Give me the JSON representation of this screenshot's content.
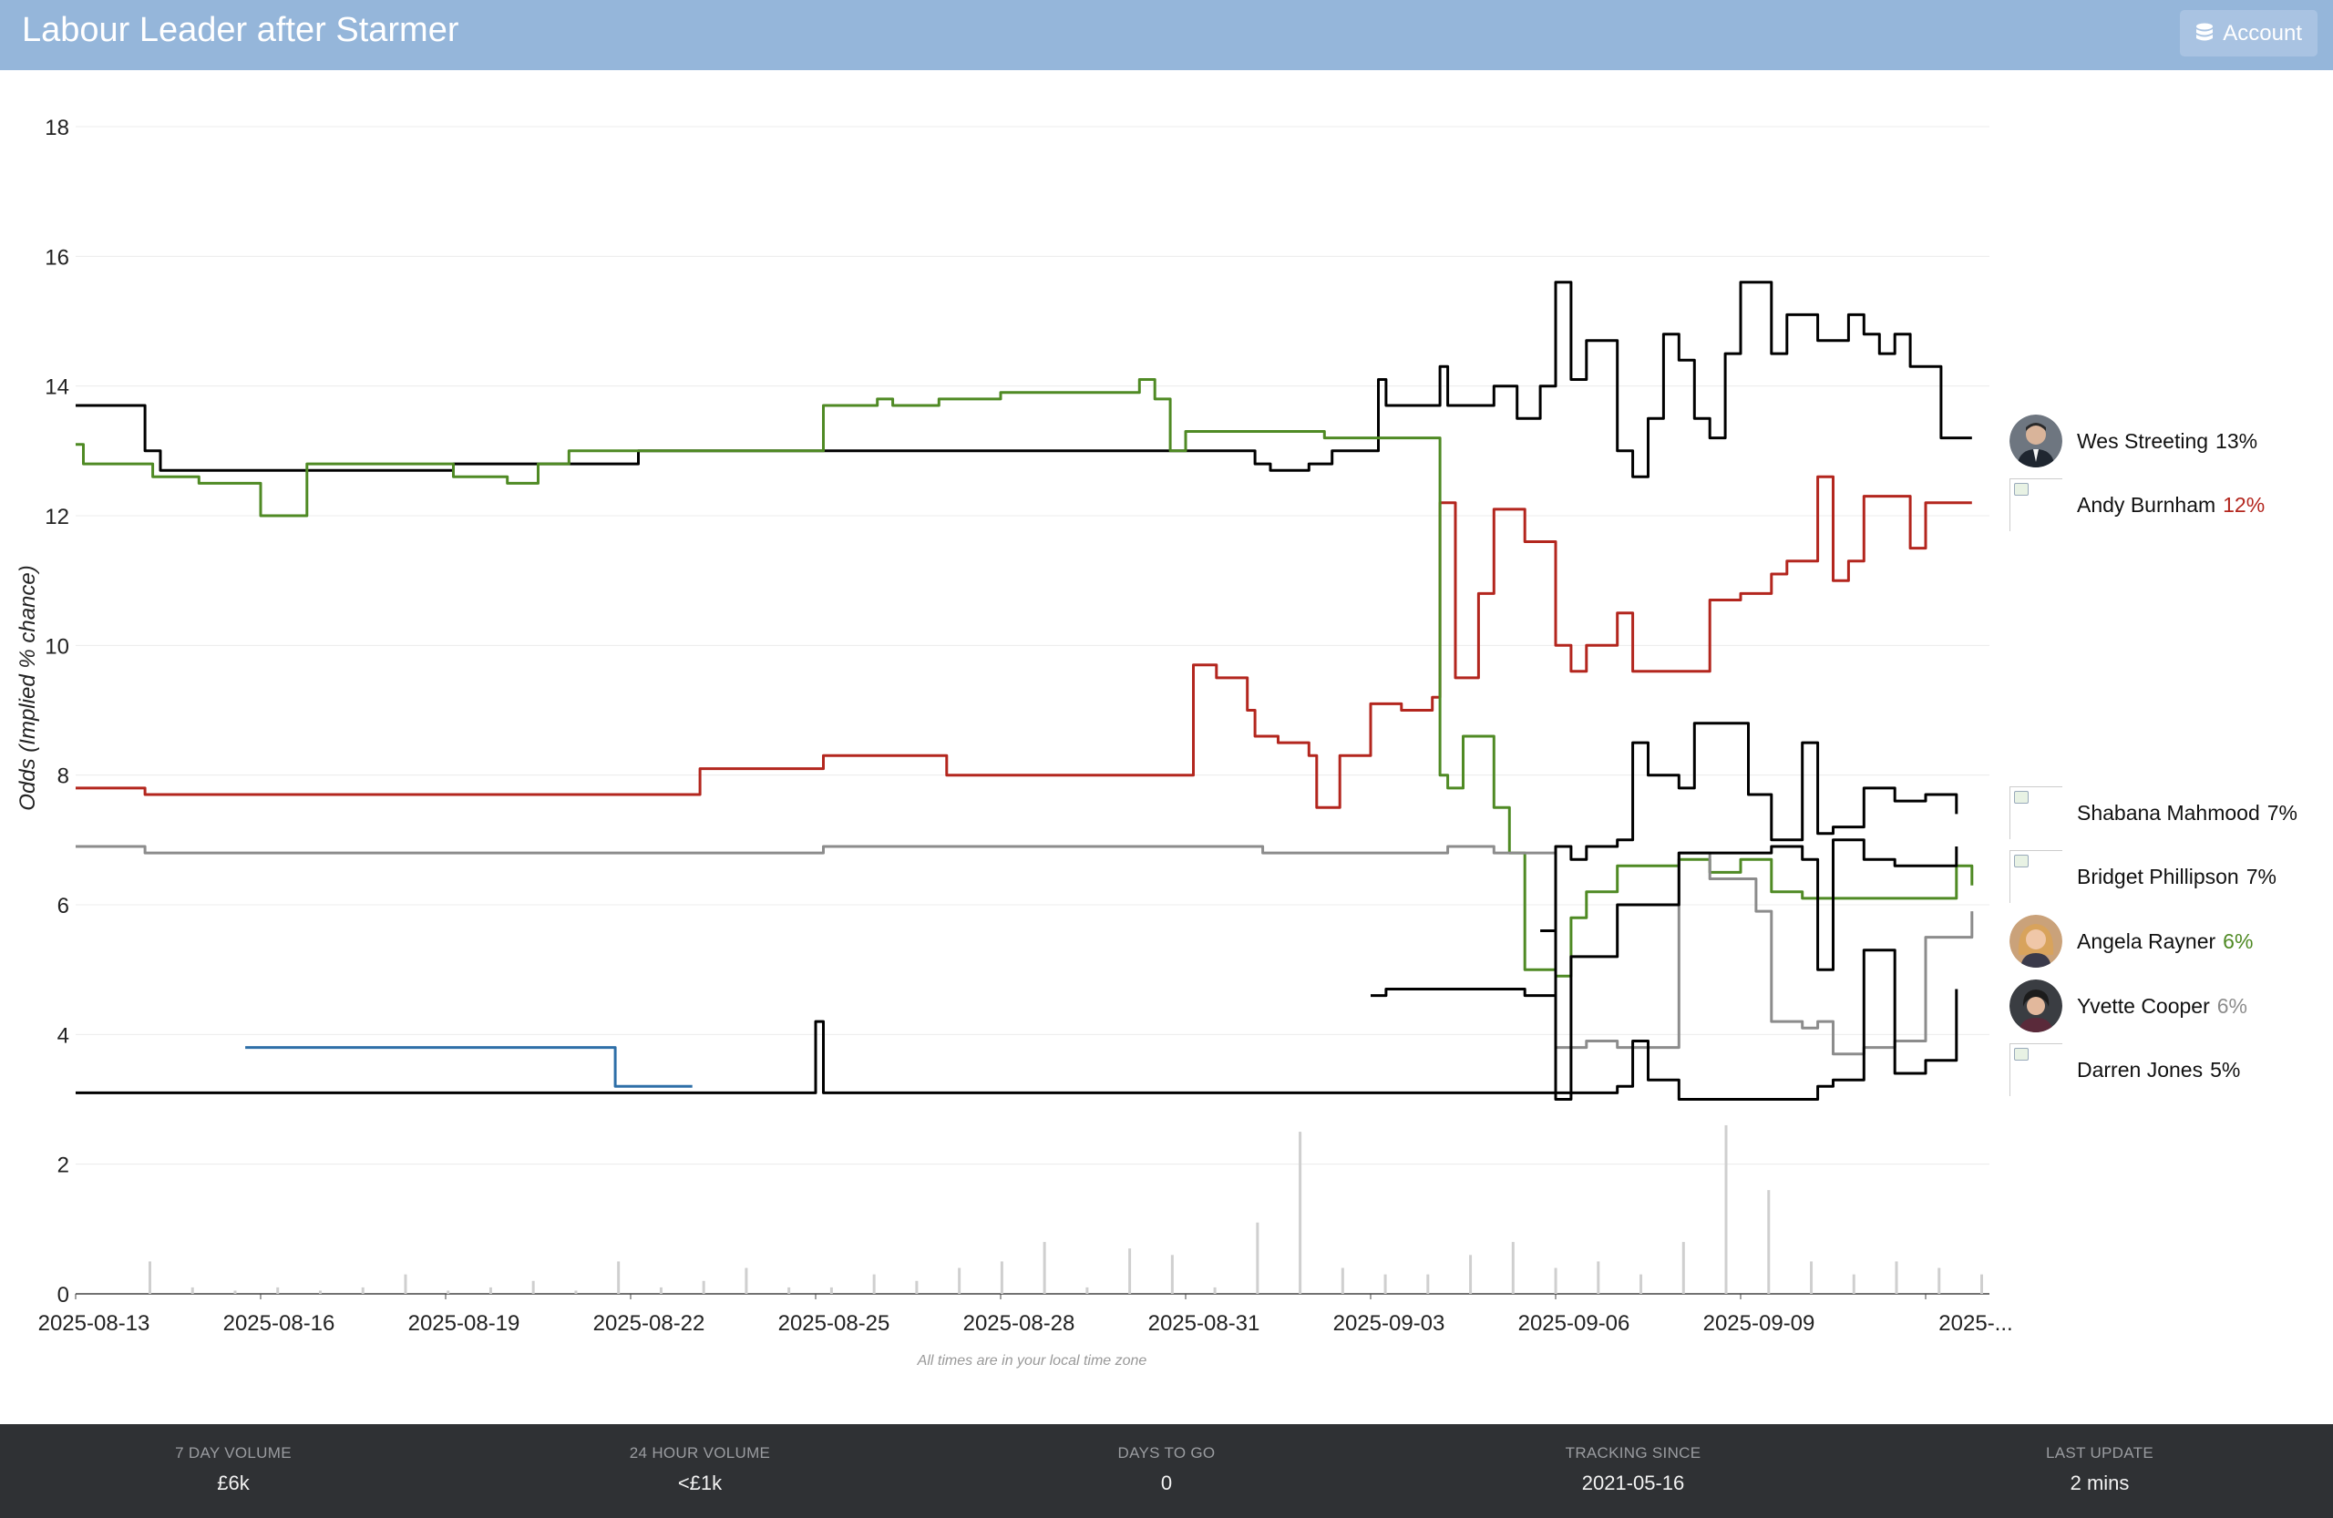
{
  "header": {
    "title": "Labour Leader after Starmer",
    "account_label": "Account"
  },
  "note": "All times are in your local time zone",
  "candidates": [
    {
      "name": "Wes Streeting",
      "pct": "13%",
      "pct_color": "#111111",
      "avatar": "photo-dark-suit"
    },
    {
      "name": "Andy Burnham",
      "pct": "12%",
      "pct_color": "#b3261e",
      "avatar": "broken-image"
    },
    {
      "name": "Shabana Mahmood",
      "pct": "7%",
      "pct_color": "#111111",
      "avatar": "broken-image"
    },
    {
      "name": "Bridget Phillipson",
      "pct": "7%",
      "pct_color": "#111111",
      "avatar": "broken-image"
    },
    {
      "name": "Angela Rayner",
      "pct": "6%",
      "pct_color": "#4f8a24",
      "avatar": "photo-blonde"
    },
    {
      "name": "Yvette Cooper",
      "pct": "6%",
      "pct_color": "#8c8c8c",
      "avatar": "photo-dark-hair"
    },
    {
      "name": "Darren Jones",
      "pct": "5%",
      "pct_color": "#111111",
      "avatar": "broken-image"
    }
  ],
  "stats": [
    {
      "label": "7 DAY VOLUME",
      "value": "£6k"
    },
    {
      "label": "24 HOUR VOLUME",
      "value": "<£1k"
    },
    {
      "label": "DAYS TO GO",
      "value": "0"
    },
    {
      "label": "TRACKING SINCE",
      "value": "2021-05-16"
    },
    {
      "label": "LAST UPDATE",
      "value": "2 mins"
    }
  ],
  "chart_data": {
    "type": "line",
    "ylabel": "Odds (Implied % chance)",
    "ylim": [
      0,
      18
    ],
    "yticks": [
      0,
      2,
      4,
      6,
      8,
      10,
      12,
      14,
      16,
      18
    ],
    "x_ticks": [
      "2025-08-13",
      "2025-08-16",
      "2025-08-19",
      "2025-08-22",
      "2025-08-25",
      "2025-08-28",
      "2025-08-31",
      "2025-09-03",
      "2025-09-06",
      "2025-09-09",
      "2025-..."
    ],
    "x_range": [
      "2025-08-13",
      "2025-09-12"
    ],
    "grid": true,
    "series": [
      {
        "name": "Wes Streeting",
        "color": "#000000",
        "points": [
          [
            "2025-08-13",
            13.7
          ],
          [
            "2025-08-14",
            13.7
          ],
          [
            "2025-08-14T03",
            13.0
          ],
          [
            "2025-08-14T09",
            12.7
          ],
          [
            "2025-08-19",
            12.7
          ],
          [
            "2025-08-19T03",
            12.8
          ],
          [
            "2025-08-22",
            12.8
          ],
          [
            "2025-08-22T03",
            13.0
          ],
          [
            "2025-09-01",
            13.0
          ],
          [
            "2025-09-01T03",
            12.8
          ],
          [
            "2025-09-01T09",
            12.7
          ],
          [
            "2025-09-02",
            12.8
          ],
          [
            "2025-09-02T09",
            13.0
          ],
          [
            "2025-09-03",
            13.0
          ],
          [
            "2025-09-03T03",
            14.1
          ],
          [
            "2025-09-03T06",
            13.7
          ],
          [
            "2025-09-04",
            13.7
          ],
          [
            "2025-09-04T03",
            14.3
          ],
          [
            "2025-09-04T06",
            13.7
          ],
          [
            "2025-09-05",
            14.0
          ],
          [
            "2025-09-05T09",
            13.5
          ],
          [
            "2025-09-05T18",
            14.0
          ],
          [
            "2025-09-06",
            15.6
          ],
          [
            "2025-09-06T06",
            14.1
          ],
          [
            "2025-09-06T12",
            14.7
          ],
          [
            "2025-09-07",
            13.0
          ],
          [
            "2025-09-07T06",
            12.6
          ],
          [
            "2025-09-07T12",
            13.5
          ],
          [
            "2025-09-07T18",
            14.8
          ],
          [
            "2025-09-08",
            14.4
          ],
          [
            "2025-09-08T06",
            13.5
          ],
          [
            "2025-09-08T12",
            13.2
          ],
          [
            "2025-09-08T18",
            14.5
          ],
          [
            "2025-09-09",
            15.6
          ],
          [
            "2025-09-09T06",
            15.6
          ],
          [
            "2025-09-09T12",
            14.5
          ],
          [
            "2025-09-09T18",
            15.1
          ],
          [
            "2025-09-10",
            15.1
          ],
          [
            "2025-09-10T06",
            14.7
          ],
          [
            "2025-09-10T18",
            15.1
          ],
          [
            "2025-09-11",
            14.8
          ],
          [
            "2025-09-11T06",
            14.5
          ],
          [
            "2025-09-11T12",
            14.8
          ],
          [
            "2025-09-11T18",
            14.3
          ],
          [
            "2025-09-12",
            14.3
          ],
          [
            "2025-09-12T06",
            13.2
          ],
          [
            "2025-09-12T18",
            13.2
          ]
        ]
      },
      {
        "name": "Andy Burnham",
        "color": "#b3261e",
        "points": [
          [
            "2025-08-13",
            7.8
          ],
          [
            "2025-08-14",
            7.8
          ],
          [
            "2025-08-14T03",
            7.7
          ],
          [
            "2025-08-23",
            7.7
          ],
          [
            "2025-08-23T03",
            8.1
          ],
          [
            "2025-08-25",
            8.1
          ],
          [
            "2025-08-25T03",
            8.3
          ],
          [
            "2025-08-27",
            8.3
          ],
          [
            "2025-08-27T03",
            8.0
          ],
          [
            "2025-08-31",
            8.0
          ],
          [
            "2025-08-31T03",
            9.7
          ],
          [
            "2025-08-31T12",
            9.5
          ],
          [
            "2025-09-01",
            9.0
          ],
          [
            "2025-09-01T03",
            8.6
          ],
          [
            "2025-09-01T12",
            8.5
          ],
          [
            "2025-09-02",
            8.3
          ],
          [
            "2025-09-02T03",
            7.5
          ],
          [
            "2025-09-02T12",
            8.3
          ],
          [
            "2025-09-03",
            9.1
          ],
          [
            "2025-09-03T12",
            9.0
          ],
          [
            "2025-09-04",
            9.2
          ],
          [
            "2025-09-04T03",
            12.2
          ],
          [
            "2025-09-04T09",
            9.5
          ],
          [
            "2025-09-04T18",
            10.8
          ],
          [
            "2025-09-05",
            12.1
          ],
          [
            "2025-09-05T12",
            11.6
          ],
          [
            "2025-09-06",
            10.0
          ],
          [
            "2025-09-06T06",
            9.6
          ],
          [
            "2025-09-06T12",
            10.0
          ],
          [
            "2025-09-07",
            10.5
          ],
          [
            "2025-09-07T06",
            9.6
          ],
          [
            "2025-09-08",
            9.6
          ],
          [
            "2025-09-08T12",
            10.7
          ],
          [
            "2025-09-09",
            10.8
          ],
          [
            "2025-09-09T12",
            11.1
          ],
          [
            "2025-09-09T18",
            11.3
          ],
          [
            "2025-09-10",
            11.3
          ],
          [
            "2025-09-10T06",
            12.6
          ],
          [
            "2025-09-10T12",
            11.0
          ],
          [
            "2025-09-10T18",
            11.3
          ],
          [
            "2025-09-11",
            12.3
          ],
          [
            "2025-09-11T12",
            12.3
          ],
          [
            "2025-09-11T18",
            11.5
          ],
          [
            "2025-09-12",
            12.2
          ],
          [
            "2025-09-12T18",
            12.2
          ]
        ]
      },
      {
        "name": "Angela Rayner",
        "color": "#4f8a24",
        "points": [
          [
            "2025-08-13",
            13.1
          ],
          [
            "2025-08-13T03",
            12.8
          ],
          [
            "2025-08-14",
            12.8
          ],
          [
            "2025-08-14T06",
            12.6
          ],
          [
            "2025-08-15",
            12.5
          ],
          [
            "2025-08-16",
            12.0
          ],
          [
            "2025-08-16T12",
            12.0
          ],
          [
            "2025-08-16T18",
            12.8
          ],
          [
            "2025-08-19",
            12.8
          ],
          [
            "2025-08-19T03",
            12.6
          ],
          [
            "2025-08-20",
            12.5
          ],
          [
            "2025-08-20T12",
            12.8
          ],
          [
            "2025-08-21",
            13.0
          ],
          [
            "2025-08-25",
            13.0
          ],
          [
            "2025-08-25T03",
            13.7
          ],
          [
            "2025-08-26",
            13.8
          ],
          [
            "2025-08-26T06",
            13.7
          ],
          [
            "2025-08-27",
            13.8
          ],
          [
            "2025-08-27T12",
            13.8
          ],
          [
            "2025-08-28",
            13.9
          ],
          [
            "2025-08-30",
            13.9
          ],
          [
            "2025-08-30T06",
            14.1
          ],
          [
            "2025-08-30T12",
            13.8
          ],
          [
            "2025-08-30T18",
            13.0
          ],
          [
            "2025-08-31",
            13.3
          ],
          [
            "2025-09-01",
            13.3
          ],
          [
            "2025-09-02",
            13.3
          ],
          [
            "2025-09-02T06",
            13.2
          ],
          [
            "2025-09-04",
            13.2
          ],
          [
            "2025-09-04T03",
            8.0
          ],
          [
            "2025-09-04T06",
            7.8
          ],
          [
            "2025-09-04T12",
            8.6
          ],
          [
            "2025-09-05",
            7.5
          ],
          [
            "2025-09-05T06",
            6.8
          ],
          [
            "2025-09-05T12",
            5.0
          ],
          [
            "2025-09-06",
            4.9
          ],
          [
            "2025-09-06T06",
            5.8
          ],
          [
            "2025-09-06T12",
            6.2
          ],
          [
            "2025-09-07",
            6.6
          ],
          [
            "2025-09-08",
            6.7
          ],
          [
            "2025-09-08T12",
            6.5
          ],
          [
            "2025-09-09",
            6.7
          ],
          [
            "2025-09-09T12",
            6.2
          ],
          [
            "2025-09-10",
            6.1
          ],
          [
            "2025-09-11",
            6.1
          ],
          [
            "2025-09-12",
            6.1
          ],
          [
            "2025-09-12T12",
            6.6
          ],
          [
            "2025-09-12T18",
            6.3
          ]
        ]
      },
      {
        "name": "Yvette Cooper",
        "color": "#8c8c8c",
        "points": [
          [
            "2025-08-13",
            6.9
          ],
          [
            "2025-08-14",
            6.9
          ],
          [
            "2025-08-14T03",
            6.8
          ],
          [
            "2025-08-25",
            6.8
          ],
          [
            "2025-08-25T03",
            6.9
          ],
          [
            "2025-09-01",
            6.9
          ],
          [
            "2025-09-01T06",
            6.8
          ],
          [
            "2025-09-04",
            6.8
          ],
          [
            "2025-09-04T06",
            6.9
          ],
          [
            "2025-09-05",
            6.8
          ],
          [
            "2025-09-05T12",
            6.8
          ],
          [
            "2025-09-06",
            3.8
          ],
          [
            "2025-09-06T12",
            3.9
          ],
          [
            "2025-09-07",
            3.8
          ],
          [
            "2025-09-07T12",
            3.8
          ],
          [
            "2025-09-08",
            6.8
          ],
          [
            "2025-09-08T12",
            6.4
          ],
          [
            "2025-09-09",
            6.4
          ],
          [
            "2025-09-09T06",
            5.9
          ],
          [
            "2025-09-09T12",
            4.2
          ],
          [
            "2025-09-10",
            4.1
          ],
          [
            "2025-09-10T06",
            4.2
          ],
          [
            "2025-09-10T12",
            3.7
          ],
          [
            "2025-09-11",
            3.8
          ],
          [
            "2025-09-11T12",
            3.9
          ],
          [
            "2025-09-12",
            5.5
          ],
          [
            "2025-09-12T12",
            5.5
          ],
          [
            "2025-09-12T18",
            5.9
          ]
        ]
      },
      {
        "name": "Shabana Mahmood",
        "color": "#000000",
        "points": [
          [
            "2025-09-03",
            4.6
          ],
          [
            "2025-09-03T03",
            4.6
          ],
          [
            "2025-09-03T06",
            4.7
          ],
          [
            "2025-09-05",
            4.7
          ],
          [
            "2025-09-05T12",
            4.6
          ],
          [
            "2025-09-05T18",
            4.6
          ],
          [
            "2025-09-06",
            6.9
          ],
          [
            "2025-09-06T06",
            6.7
          ],
          [
            "2025-09-06T12",
            6.9
          ],
          [
            "2025-09-07",
            7.0
          ],
          [
            "2025-09-07T06",
            8.5
          ],
          [
            "2025-09-07T12",
            8.0
          ],
          [
            "2025-09-08",
            7.8
          ],
          [
            "2025-09-08T06",
            8.8
          ],
          [
            "2025-09-09",
            8.8
          ],
          [
            "2025-09-09T03",
            7.7
          ],
          [
            "2025-09-09T12",
            7.0
          ],
          [
            "2025-09-10",
            8.5
          ],
          [
            "2025-09-10T06",
            7.1
          ],
          [
            "2025-09-10T12",
            7.2
          ],
          [
            "2025-09-11",
            7.8
          ],
          [
            "2025-09-11T12",
            7.6
          ],
          [
            "2025-09-12",
            7.7
          ],
          [
            "2025-09-12T12",
            7.4
          ]
        ]
      },
      {
        "name": "Bridget Phillipson",
        "color": "#000000",
        "points": [
          [
            "2025-09-05T18",
            5.6
          ],
          [
            "2025-09-06",
            3.0
          ],
          [
            "2025-09-06T06",
            5.2
          ],
          [
            "2025-09-07",
            6.0
          ],
          [
            "2025-09-08",
            6.8
          ],
          [
            "2025-09-09",
            6.8
          ],
          [
            "2025-09-09T12",
            6.9
          ],
          [
            "2025-09-10",
            6.7
          ],
          [
            "2025-09-10T06",
            5.0
          ],
          [
            "2025-09-10T12",
            7.0
          ],
          [
            "2025-09-11",
            6.7
          ],
          [
            "2025-09-11T12",
            6.6
          ],
          [
            "2025-09-12",
            6.6
          ],
          [
            "2025-09-12T12",
            6.9
          ]
        ]
      },
      {
        "name": "Darren Jones",
        "color": "#000000",
        "points": [
          [
            "2025-08-13",
            3.1
          ],
          [
            "2025-08-19T06",
            3.1
          ],
          [
            "2025-08-25",
            4.2
          ],
          [
            "2025-08-25T03",
            3.1
          ],
          [
            "2025-08-25T12",
            3.1
          ],
          [
            "2025-09-06T12",
            3.1
          ],
          [
            "2025-09-07",
            3.2
          ],
          [
            "2025-09-07T06",
            3.9
          ],
          [
            "2025-09-07T12",
            3.3
          ],
          [
            "2025-09-08",
            3.0
          ],
          [
            "2025-09-10T06",
            3.2
          ],
          [
            "2025-09-10T12",
            3.3
          ],
          [
            "2025-09-11",
            5.3
          ],
          [
            "2025-09-11T12",
            3.4
          ],
          [
            "2025-09-12",
            3.6
          ],
          [
            "2025-09-12T12",
            4.7
          ]
        ]
      },
      {
        "name": "",
        "color": "#2e6fa8",
        "points": [
          [
            "2025-08-15T18",
            3.8
          ],
          [
            "2025-08-21T12",
            3.8
          ],
          [
            "2025-08-21T18",
            3.2
          ],
          [
            "2025-08-23",
            3.2
          ]
        ]
      }
    ],
    "volume": {
      "color": "#cfcfcf",
      "values": [
        0.5,
        0.1,
        0.05,
        0.1,
        0.05,
        0.1,
        0.3,
        0.05,
        0.1,
        0.2,
        0.05,
        0.5,
        0.1,
        0.2,
        0.4,
        0.1,
        0.1,
        0.3,
        0.2,
        0.4,
        0.5,
        0.8,
        0.1,
        0.7,
        0.6,
        0.1,
        1.1,
        2.5,
        0.4,
        0.3,
        0.3,
        0.6,
        0.8,
        0.4,
        0.5,
        0.3,
        0.8,
        2.6,
        1.6,
        0.5,
        0.3,
        0.5,
        0.4,
        0.3
      ]
    }
  }
}
